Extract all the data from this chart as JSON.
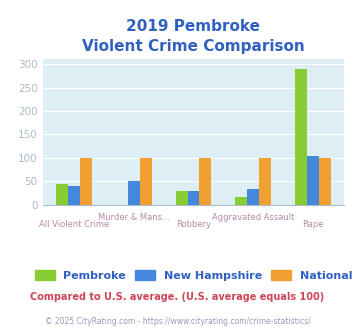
{
  "title_line1": "2019 Pembroke",
  "title_line2": "Violent Crime Comparison",
  "title_color": "#3060c0",
  "categories_line1": [
    "",
    "Murder & Mans...",
    "",
    "Aggravated Assault",
    ""
  ],
  "categories_line2": [
    "All Violent Crime",
    "",
    "Robbery",
    "",
    "Rape"
  ],
  "series": {
    "Pembroke": [
      43,
      0,
      30,
      17,
      290
    ],
    "New Hampshire": [
      40,
      50,
      30,
      33,
      103
    ],
    "National": [
      100,
      100,
      100,
      100,
      100
    ]
  },
  "colors": {
    "Pembroke": "#88cc33",
    "New Hampshire": "#4488dd",
    "National": "#f0a030"
  },
  "ylim": [
    0,
    310
  ],
  "yticks": [
    0,
    50,
    100,
    150,
    200,
    250,
    300
  ],
  "plot_bg": "#ddeef4",
  "footnote1": "Compared to U.S. average. (U.S. average equals 100)",
  "footnote2": "© 2025 CityRating.com - https://www.cityrating.com/crime-statistics/",
  "footnote1_color": "#cc4455",
  "footnote2_color": "#9999bb",
  "cat_label_color": "#bb88aa",
  "axis_color": "#aabbcc",
  "tick_color": "#aabbcc",
  "bar_width": 0.2,
  "legend_text_color": "#3060c0"
}
